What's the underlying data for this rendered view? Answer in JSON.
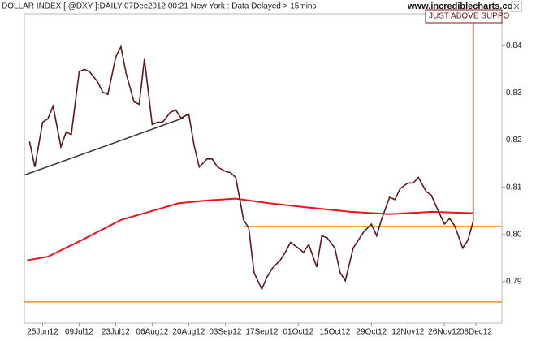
{
  "chart_data": {
    "type": "line",
    "title": "DOLLAR INDEX [ @DXY ]:DAILY:07Dec2012 00:21 New York : Data Delayed > 15mins",
    "watermark": "www.incrediblecharts.com",
    "xlim": [
      "2012-06-18",
      "2012-12-18"
    ],
    "xticks": [
      {
        "value": "2012-06-25",
        "label": "25Jun12"
      },
      {
        "value": "2012-07-09",
        "label": "09Jul12"
      },
      {
        "value": "2012-07-23",
        "label": "23Jul12"
      },
      {
        "value": "2012-08-06",
        "label": "06Aug12"
      },
      {
        "value": "2012-08-20",
        "label": "20Aug12"
      },
      {
        "value": "2012-09-03",
        "label": "03Sep12"
      },
      {
        "value": "2012-09-17",
        "label": "17Sep12"
      },
      {
        "value": "2012-10-01",
        "label": "01Oct12"
      },
      {
        "value": "2012-10-15",
        "label": "15Oct12"
      },
      {
        "value": "2012-10-29",
        "label": "29Oct12"
      },
      {
        "value": "2012-11-12",
        "label": "12Nov12"
      },
      {
        "value": "2012-11-26",
        "label": "26Nov12"
      },
      {
        "value": "2012-12-08",
        "label": "08Dec12"
      }
    ],
    "ylim": [
      0.7812,
      0.8497
    ],
    "yticks": [
      {
        "value": 0.79,
        "label": "0.79"
      },
      {
        "value": 0.8,
        "label": "0.80"
      },
      {
        "value": 0.81,
        "label": "0.81"
      },
      {
        "value": 0.82,
        "label": "0.82"
      },
      {
        "value": 0.83,
        "label": "0.83"
      },
      {
        "value": 0.84,
        "label": "0.84"
      }
    ],
    "series": [
      {
        "color": "#5a1a1a",
        "x": [
          "2012-06-20",
          "2012-06-22",
          "2012-06-25",
          "2012-06-27",
          "2012-06-29",
          "2012-07-02",
          "2012-07-04",
          "2012-07-06",
          "2012-07-09",
          "2012-07-11",
          "2012-07-13",
          "2012-07-16",
          "2012-07-18",
          "2012-07-20",
          "2012-07-23",
          "2012-07-25",
          "2012-07-27",
          "2012-07-30",
          "2012-08-01",
          "2012-08-03",
          "2012-08-06",
          "2012-08-08",
          "2012-08-10",
          "2012-08-13",
          "2012-08-15",
          "2012-08-17",
          "2012-08-20",
          "2012-08-22",
          "2012-08-24",
          "2012-08-27",
          "2012-08-29",
          "2012-08-31",
          "2012-09-03",
          "2012-09-05",
          "2012-09-07",
          "2012-09-10",
          "2012-09-12",
          "2012-09-14",
          "2012-09-17",
          "2012-09-19",
          "2012-09-21",
          "2012-09-24",
          "2012-09-26",
          "2012-09-28",
          "2012-10-01",
          "2012-10-03",
          "2012-10-05",
          "2012-10-08",
          "2012-10-10",
          "2012-10-12",
          "2012-10-15",
          "2012-10-17",
          "2012-10-19",
          "2012-10-22",
          "2012-10-24",
          "2012-10-26",
          "2012-10-29",
          "2012-10-31",
          "2012-11-02",
          "2012-11-05",
          "2012-11-07",
          "2012-11-09",
          "2012-11-12",
          "2012-11-14",
          "2012-11-16",
          "2012-11-19",
          "2012-11-21",
          "2012-11-23",
          "2012-11-26",
          "2012-11-28",
          "2012-11-30",
          "2012-12-03",
          "2012-12-05",
          "2012-12-07"
        ],
        "values": [
          0.8197,
          0.8143,
          0.8238,
          0.8245,
          0.8272,
          0.8186,
          0.8217,
          0.8212,
          0.8345,
          0.835,
          0.8345,
          0.8324,
          0.8302,
          0.8297,
          0.8376,
          0.8398,
          0.8341,
          0.8281,
          0.8276,
          0.8372,
          0.8233,
          0.8238,
          0.8238,
          0.8259,
          0.8264,
          0.8247,
          0.8255,
          0.819,
          0.8143,
          0.816,
          0.816,
          0.8143,
          0.8134,
          0.8131,
          0.8121,
          0.8031,
          0.8014,
          0.7919,
          0.7884,
          0.791,
          0.7928,
          0.7945,
          0.7962,
          0.7983,
          0.7971,
          0.7962,
          0.7979,
          0.7931,
          0.7997,
          0.7993,
          0.7971,
          0.7919,
          0.7902,
          0.7971,
          0.7988,
          0.8005,
          0.8022,
          0.7997,
          0.8034,
          0.8079,
          0.8074,
          0.8097,
          0.8109,
          0.8109,
          0.8121,
          0.8091,
          0.8083,
          0.8057,
          0.8022,
          0.8034,
          0.8017,
          0.7971,
          0.7988,
          0.8028
        ]
      },
      {
        "color": "#e8141e",
        "x": [
          "2012-06-19",
          "2012-06-27",
          "2012-07-10",
          "2012-07-25",
          "2012-08-03",
          "2012-08-16",
          "2012-08-27",
          "2012-09-07",
          "2012-09-20",
          "2012-10-05",
          "2012-10-21",
          "2012-11-05",
          "2012-11-21",
          "2012-12-07"
        ],
        "values": [
          0.7945,
          0.7953,
          0.7988,
          0.8031,
          0.8045,
          0.8066,
          0.8072,
          0.8076,
          0.8066,
          0.8057,
          0.8048,
          0.8043,
          0.8048,
          0.8045
        ]
      },
      {
        "color": "#3a3a3a",
        "x": [
          "2012-06-18",
          "2012-08-18"
        ],
        "values": [
          0.8126,
          0.8247
        ]
      }
    ],
    "hlines": [
      {
        "value": 0.8017,
        "color": "#f0901e",
        "x_start": "2012-09-10"
      },
      {
        "value": 0.7857,
        "color": "#f0901e",
        "x_start": "2012-06-18"
      }
    ],
    "annotation": {
      "text": "JUST ABOVE SUPPO",
      "x": "2012-12-07",
      "value": 0.8028,
      "color": "#7a1a1a"
    }
  }
}
